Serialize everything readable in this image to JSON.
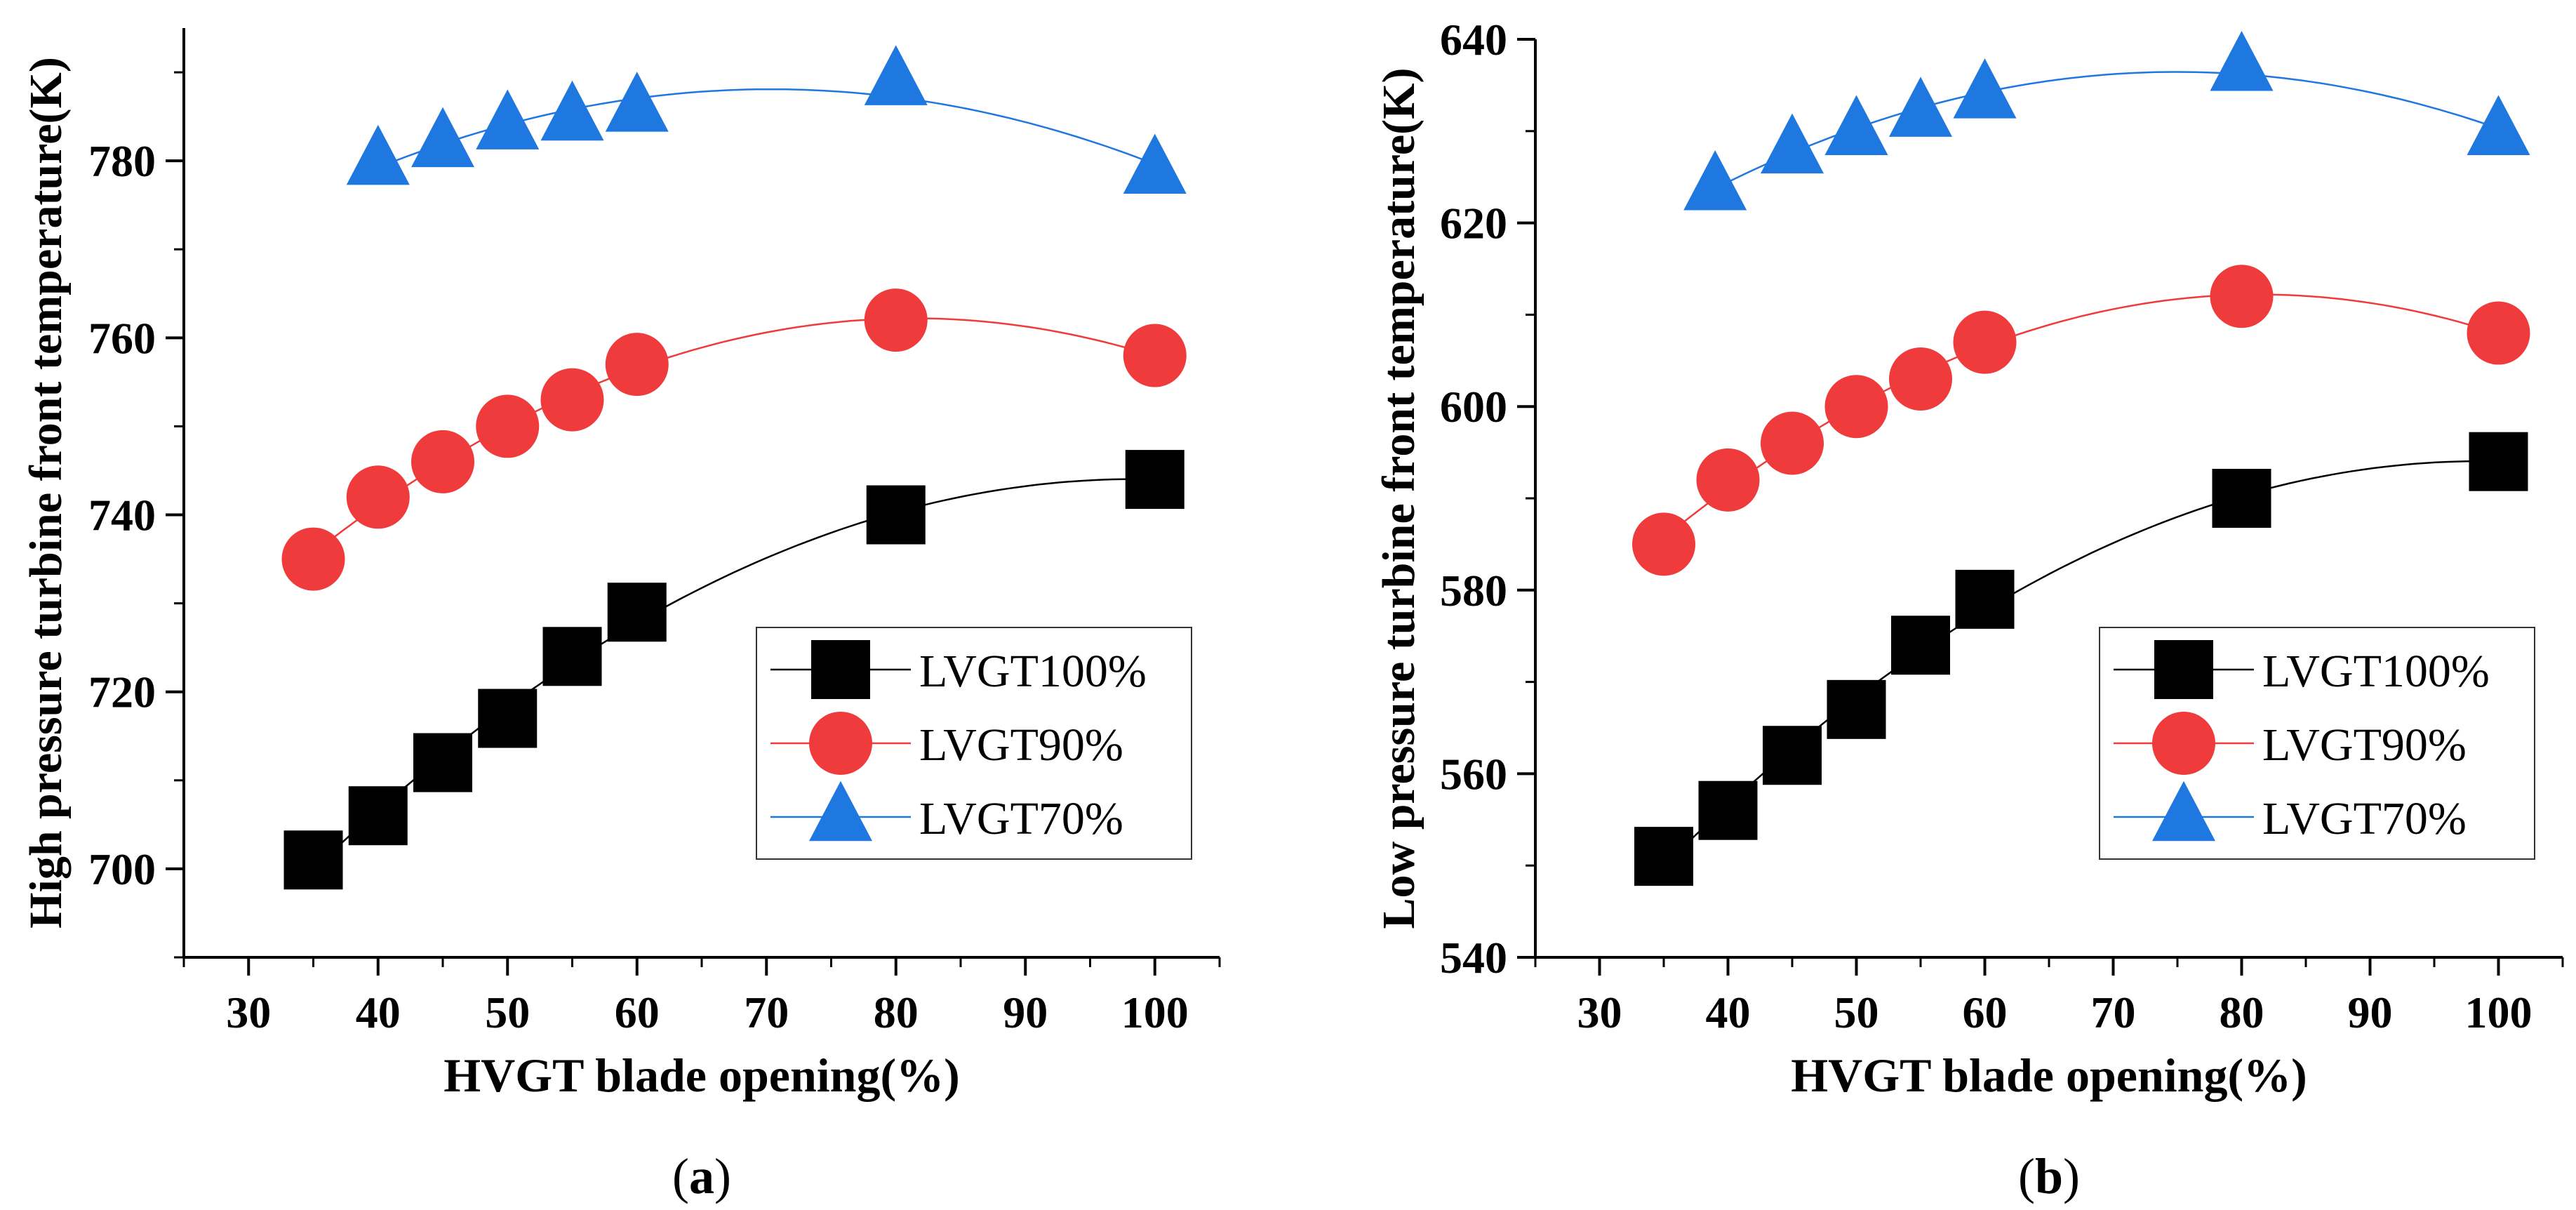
{
  "chart_data": [
    {
      "type": "scatter",
      "panel_label": "(a)",
      "panel_letter": "a",
      "xlabel": "HVGT blade opening(%)",
      "ylabel": "High pressure turbine front temperature(K)",
      "xlim": [
        25,
        105
      ],
      "ylim": [
        690,
        795
      ],
      "xticks": [
        30,
        40,
        50,
        60,
        70,
        80,
        90,
        100
      ],
      "yticks": [
        700,
        720,
        740,
        760,
        780
      ],
      "legend_position": "lower-right",
      "series": [
        {
          "name": "LVGT100%",
          "marker": "square",
          "color": "#000000",
          "x": [
            35,
            40,
            45,
            50,
            55,
            60,
            80,
            100
          ],
          "y": [
            701,
            706,
            712,
            717,
            724,
            729,
            740,
            744
          ]
        },
        {
          "name": "LVGT90%",
          "marker": "circle",
          "color": "#ef3b3b",
          "x": [
            35,
            40,
            45,
            50,
            55,
            60,
            80,
            100
          ],
          "y": [
            735,
            742,
            746,
            750,
            753,
            757,
            762,
            758
          ]
        },
        {
          "name": "LVGT70%",
          "marker": "triangle",
          "color": "#1f77e0",
          "x": [
            40,
            45,
            50,
            55,
            60,
            80,
            100
          ],
          "y": [
            780,
            782,
            784,
            785,
            786,
            789,
            779
          ]
        }
      ]
    },
    {
      "type": "scatter",
      "panel_label": "(b)",
      "panel_letter": "b",
      "xlabel": "HVGT blade opening(%)",
      "ylabel": "Low pressure turbine front temperature(K)",
      "xlim": [
        25,
        105
      ],
      "ylim": [
        540,
        640
      ],
      "xticks": [
        30,
        40,
        50,
        60,
        70,
        80,
        90,
        100
      ],
      "yticks": [
        540,
        560,
        580,
        600,
        620,
        640
      ],
      "legend_position": "lower-right",
      "series": [
        {
          "name": "LVGT100%",
          "marker": "square",
          "color": "#000000",
          "x": [
            35,
            40,
            45,
            50,
            55,
            60,
            80,
            100
          ],
          "y": [
            551,
            556,
            562,
            567,
            574,
            579,
            590,
            594
          ]
        },
        {
          "name": "LVGT90%",
          "marker": "circle",
          "color": "#ef3b3b",
          "x": [
            35,
            40,
            45,
            50,
            55,
            60,
            80,
            100
          ],
          "y": [
            585,
            592,
            596,
            600,
            603,
            607,
            612,
            608
          ]
        },
        {
          "name": "LVGT70%",
          "marker": "triangle",
          "color": "#1f77e0",
          "x": [
            39,
            45,
            50,
            55,
            60,
            80,
            100
          ],
          "y": [
            624,
            628,
            630,
            632,
            634,
            637,
            630
          ]
        }
      ]
    }
  ]
}
